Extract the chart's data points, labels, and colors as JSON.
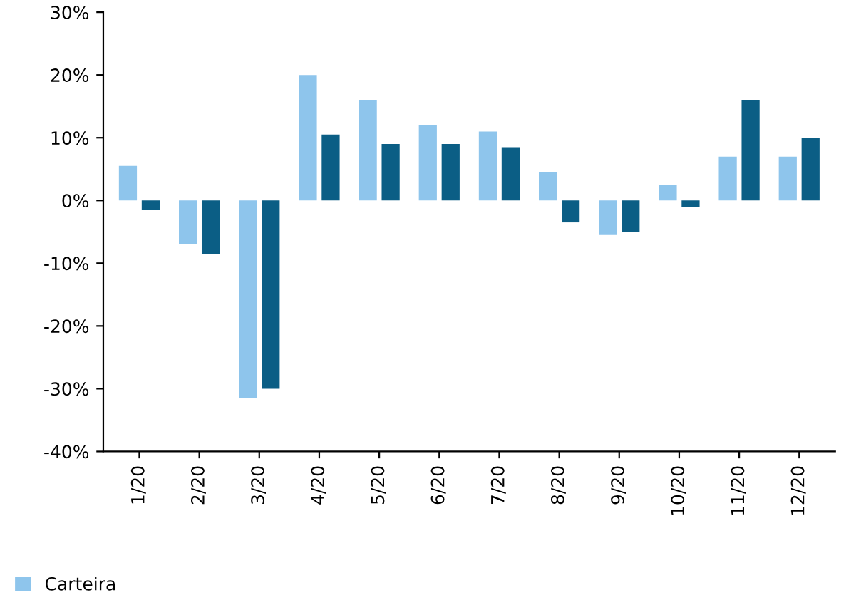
{
  "chart_data": {
    "type": "bar",
    "categories": [
      "1/20",
      "2/20",
      "3/20",
      "4/20",
      "5/20",
      "6/20",
      "7/20",
      "8/20",
      "9/20",
      "10/20",
      "11/20",
      "12/20"
    ],
    "series": [
      {
        "name": "Carteira",
        "color": "#8ec5ec",
        "values": [
          5.5,
          -7,
          -31.5,
          20,
          16,
          12,
          11,
          4.5,
          -5.5,
          2.5,
          7,
          7
        ]
      },
      {
        "color": "#0b5e85",
        "values": [
          -1.5,
          -8.5,
          -30,
          10.5,
          9,
          9,
          8.5,
          -3.5,
          -5,
          -1,
          16,
          10
        ]
      }
    ],
    "ylim": [
      -40,
      30
    ],
    "yticks": [
      {
        "value": -40,
        "label": "-40%"
      },
      {
        "value": -30,
        "label": "-30%"
      },
      {
        "value": -20,
        "label": "-20%"
      },
      {
        "value": -10,
        "label": "-10%"
      },
      {
        "value": 0,
        "label": "0%"
      },
      {
        "value": 10,
        "label": "10%"
      },
      {
        "value": 20,
        "label": "20%"
      },
      {
        "value": 30,
        "label": "30%"
      }
    ],
    "grid": false,
    "legend": "bottom left"
  }
}
